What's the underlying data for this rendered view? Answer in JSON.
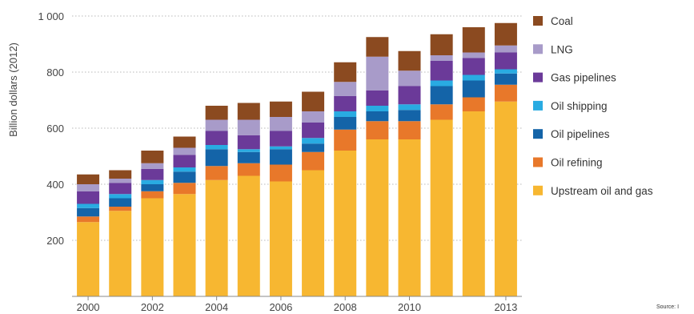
{
  "chart_data": {
    "type": "bar",
    "stacked": true,
    "ylabel": "Billion dollars (2012)",
    "ylim": [
      0,
      1000
    ],
    "yticks": [
      200,
      400,
      600,
      800,
      1000
    ],
    "ytick_labels": [
      "200",
      "400",
      "600",
      "800",
      "1 000"
    ],
    "categories": [
      "2000",
      "2001",
      "2002",
      "2003",
      "2004",
      "2005",
      "2006",
      "2007",
      "2008",
      "2009",
      "2010",
      "2011",
      "2012",
      "2013"
    ],
    "xtick_labels": [
      "2000",
      "",
      "2002",
      "",
      "2004",
      "",
      "2006",
      "",
      "2008",
      "",
      "2010",
      "",
      "",
      "2013"
    ],
    "grid": "horizontal-dotted",
    "legend_position": "right",
    "series": [
      {
        "name": "Upstream oil and gas",
        "color": "#f7b731",
        "values": [
          265,
          305,
          350,
          365,
          415,
          430,
          410,
          450,
          520,
          560,
          560,
          630,
          660,
          695
        ]
      },
      {
        "name": "Oil refining",
        "color": "#e8782a",
        "values": [
          20,
          15,
          25,
          40,
          50,
          45,
          60,
          65,
          75,
          65,
          65,
          55,
          50,
          60
        ]
      },
      {
        "name": "Oil pipelines",
        "color": "#1464a8",
        "values": [
          30,
          30,
          25,
          40,
          60,
          40,
          55,
          30,
          45,
          35,
          40,
          65,
          60,
          40
        ]
      },
      {
        "name": "Oil shipping",
        "color": "#29abe2",
        "values": [
          15,
          15,
          15,
          15,
          15,
          10,
          10,
          20,
          20,
          20,
          20,
          20,
          20,
          15
        ]
      },
      {
        "name": "Gas pipelines",
        "color": "#6b3a99",
        "values": [
          45,
          40,
          40,
          45,
          50,
          50,
          55,
          55,
          55,
          55,
          65,
          70,
          60,
          60
        ]
      },
      {
        "name": "LNG",
        "color": "#a89bc9",
        "values": [
          25,
          15,
          20,
          25,
          40,
          55,
          50,
          40,
          50,
          120,
          55,
          20,
          20,
          25
        ]
      },
      {
        "name": "Coal",
        "color": "#8b4a20",
        "values": [
          35,
          30,
          45,
          40,
          50,
          60,
          55,
          70,
          70,
          70,
          70,
          75,
          90,
          80
        ]
      }
    ]
  },
  "source_label": "Source: I"
}
